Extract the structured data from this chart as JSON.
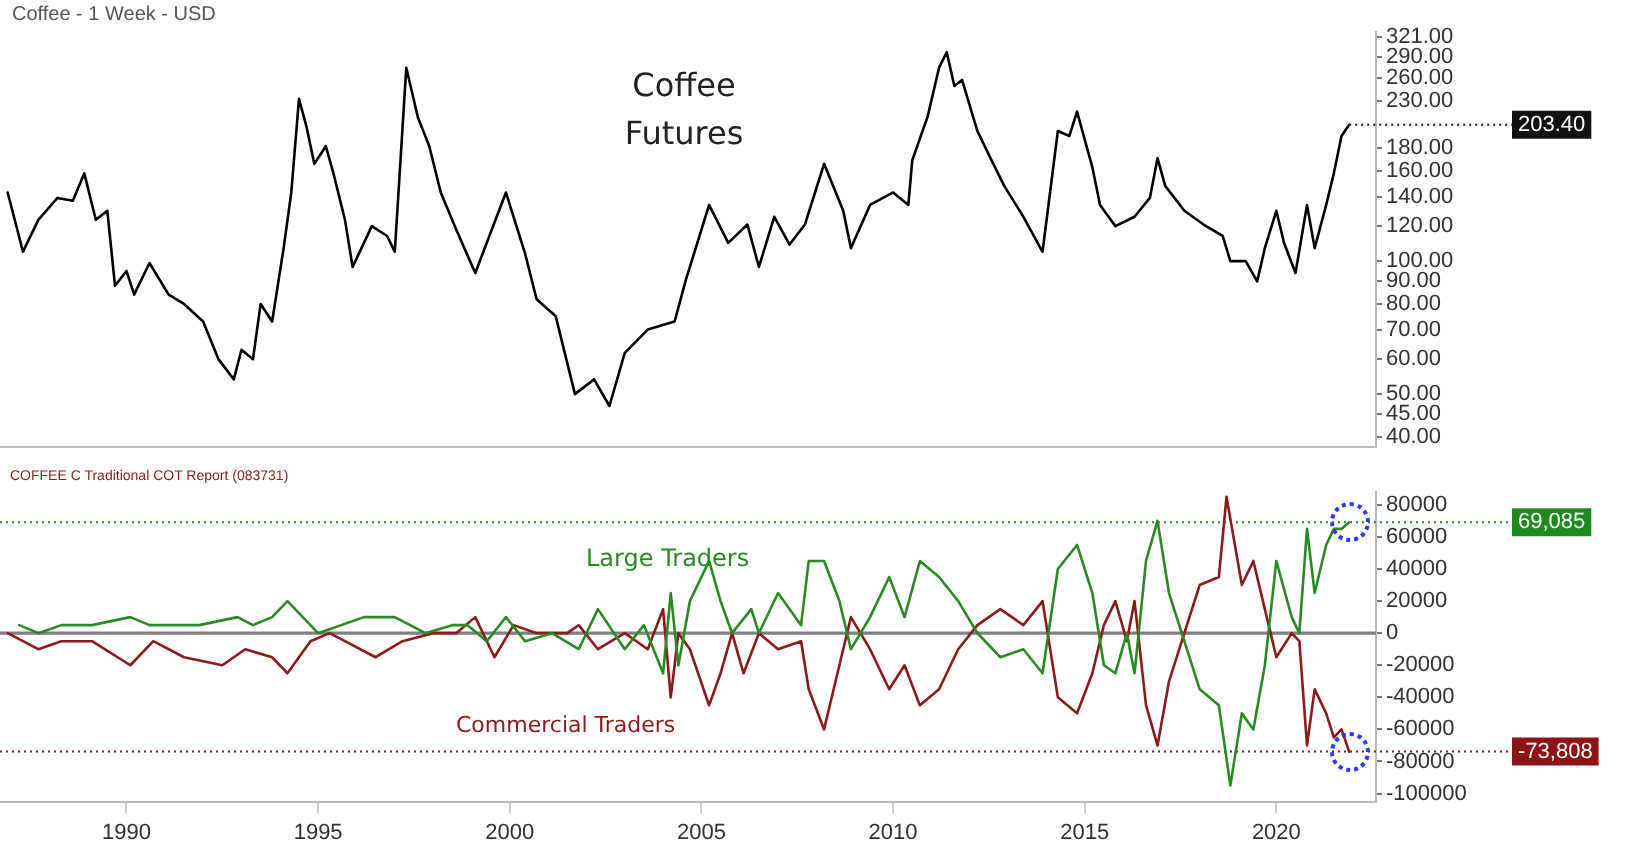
{
  "chart_data": [
    {
      "type": "line",
      "title": "Coffee Futures",
      "subtitle": "Coffee - 1 Week - USD",
      "log": "y",
      "legend": false,
      "grid": false,
      "tick_labels": "y",
      "marker": "none",
      "xlim": [
        1986.7,
        2022.6
      ],
      "xticks": [
        1990,
        1995,
        2000,
        2005,
        2010,
        2015,
        2020
      ],
      "ylim": [
        38,
        330
      ],
      "yticks": [
        {
          "value": 321,
          "label": "321.00"
        },
        {
          "value": 290,
          "label": "290.00"
        },
        {
          "value": 260,
          "label": "260.00"
        },
        {
          "value": 230,
          "label": "230.00"
        },
        {
          "value": 180,
          "label": "180.00"
        },
        {
          "value": 160,
          "label": "160.00"
        },
        {
          "value": 140,
          "label": "140.00"
        },
        {
          "value": 120,
          "label": "120.00"
        },
        {
          "value": 100,
          "label": "100.00"
        },
        {
          "value": 90,
          "label": "90.00"
        },
        {
          "value": 80,
          "label": "80.00"
        },
        {
          "value": 70,
          "label": "70.00"
        },
        {
          "value": 60,
          "label": "60.00"
        },
        {
          "value": 50,
          "label": "50.00"
        },
        {
          "value": 45,
          "label": "45.00"
        },
        {
          "value": 40,
          "label": "40.00"
        }
      ],
      "annotations": [
        {
          "text": "203.40",
          "x": 2021.9,
          "y": 203.4
        }
      ],
      "series": [
        {
          "color": "#000000",
          "x": [
            1986.9,
            1987.3,
            1987.7,
            1988.2,
            1988.6,
            1988.9,
            1989.2,
            1989.5,
            1989.7,
            1990.0,
            1990.2,
            1990.6,
            1991.1,
            1991.5,
            1992.0,
            1992.4,
            1992.8,
            1993.0,
            1993.3,
            1993.5,
            1993.8,
            1994.1,
            1994.3,
            1994.5,
            1994.7,
            1994.9,
            1995.2,
            1995.4,
            1995.7,
            1995.9,
            1996.4,
            1996.8,
            1997.0,
            1997.3,
            1997.6,
            1997.9,
            1998.2,
            1998.6,
            1999.1,
            1999.9,
            2000.4,
            2000.7,
            2001.2,
            2001.7,
            2002.2,
            2002.6,
            2003.0,
            2003.6,
            2004.3,
            2004.6,
            2005.2,
            2005.7,
            2006.2,
            2006.5,
            2006.9,
            2007.3,
            2007.7,
            2008.2,
            2008.7,
            2008.9,
            2009.4,
            2010.0,
            2010.4,
            2010.5,
            2010.9,
            2011.2,
            2011.4,
            2011.6,
            2011.8,
            2012.2,
            2012.5,
            2012.9,
            2013.4,
            2013.9,
            2014.3,
            2014.6,
            2014.8,
            2015.2,
            2015.4,
            2015.8,
            2016.3,
            2016.7,
            2016.9,
            2017.1,
            2017.6,
            2018.1,
            2018.6,
            2018.8,
            2019.2,
            2019.5,
            2019.7,
            2020.0,
            2020.2,
            2020.5,
            2020.8,
            2021.0,
            2021.3,
            2021.5,
            2021.7,
            2021.9
          ],
          "values": [
            143,
            105,
            124,
            139,
            137,
            158,
            124,
            130,
            88,
            95,
            84,
            99,
            84,
            80,
            73,
            60,
            54,
            63,
            60,
            80,
            73,
            107,
            143,
            233,
            201,
            166,
            182,
            158,
            124,
            97,
            120,
            114,
            105,
            274,
            212,
            182,
            143,
            118,
            94,
            143,
            104,
            82,
            75,
            50,
            54,
            47,
            62,
            70,
            73,
            91,
            134,
            110,
            121,
            97,
            126,
            109,
            121,
            166,
            130,
            107,
            134,
            143,
            134,
            169,
            212,
            274,
            297,
            249,
            257,
            197,
            174,
            148,
            126,
            105,
            197,
            192,
            218,
            163,
            134,
            120,
            126,
            139,
            171,
            148,
            130,
            121,
            114,
            100,
            100,
            90,
            107,
            130,
            110,
            94,
            134,
            107,
            134,
            158,
            192,
            203.4
          ]
        }
      ]
    },
    {
      "type": "line",
      "title": "COFFEE C Traditional COT Report (083731)",
      "legend": false,
      "grid": false,
      "marker": "none",
      "xlim": [
        1986.7,
        2022.6
      ],
      "xticks": [
        1990,
        1995,
        2000,
        2005,
        2010,
        2015,
        2020
      ],
      "ylim": [
        -105000,
        88000
      ],
      "yticks": [
        -100000,
        -80000,
        -60000,
        -40000,
        -20000,
        0,
        20000,
        40000,
        60000,
        80000
      ],
      "ref_lines": [
        {
          "axis": "y",
          "value": 0,
          "color": "#808080",
          "line_style": "solid"
        },
        {
          "axis": "y",
          "value": 69085,
          "label": "69,085",
          "color": "#1e8a1e",
          "line_style": "dotted"
        },
        {
          "axis": "y",
          "value": -73808,
          "label": "-73,808",
          "color": "#8b1414",
          "line_style": "dotted"
        }
      ],
      "series": [
        {
          "name": "Large Traders",
          "color": "#2a8a22",
          "x": [
            1987.2,
            1987.7,
            1988.3,
            1989.1,
            1990.1,
            1990.6,
            1991.2,
            1991.9,
            1992.9,
            1993.3,
            1993.8,
            1994.2,
            1994.6,
            1995.0,
            1995.6,
            1996.2,
            1997.0,
            1997.8,
            1998.5,
            1998.9,
            1999.4,
            1999.9,
            2000.4,
            2001.1,
            2001.8,
            2002.3,
            2003.0,
            2003.5,
            2004.0,
            2004.2,
            2004.4,
            2004.7,
            2005.2,
            2005.5,
            2005.8,
            2006.3,
            2006.5,
            2007.0,
            2007.6,
            2007.8,
            2008.2,
            2008.6,
            2008.9,
            2009.4,
            2009.9,
            2010.3,
            2010.7,
            2011.2,
            2011.7,
            2012.2,
            2012.8,
            2013.4,
            2013.9,
            2014.3,
            2014.8,
            2015.2,
            2015.5,
            2015.8,
            2016.1,
            2016.3,
            2016.6,
            2016.9,
            2017.2,
            2017.6,
            2018.0,
            2018.5,
            2018.8,
            2019.1,
            2019.4,
            2019.7,
            2020.0,
            2020.4,
            2020.6,
            2020.8,
            2021.0,
            2021.3,
            2021.5,
            2021.7,
            2021.9
          ],
          "values": [
            5000,
            0,
            5000,
            5000,
            10000,
            5000,
            5000,
            5000,
            10000,
            5000,
            10000,
            20000,
            10000,
            0,
            5000,
            10000,
            10000,
            0,
            5000,
            5000,
            -5000,
            10000,
            -5000,
            0,
            -10000,
            15000,
            -10000,
            5000,
            -25000,
            25000,
            -20000,
            20000,
            45000,
            20000,
            0,
            15000,
            0,
            25000,
            5000,
            45000,
            45000,
            20000,
            -10000,
            10000,
            35000,
            10000,
            45000,
            35000,
            20000,
            0,
            -15000,
            -10000,
            -25000,
            40000,
            55000,
            25000,
            -20000,
            -25000,
            0,
            -25000,
            45000,
            70000,
            25000,
            -5000,
            -35000,
            -45000,
            -95000,
            -50000,
            -60000,
            -20000,
            45000,
            10000,
            0,
            65000,
            25000,
            55000,
            65000,
            65000,
            69085
          ]
        },
        {
          "name": "Commercial Traders",
          "color": "#8b1a1a",
          "x": [
            1986.9,
            1987.7,
            1988.3,
            1989.1,
            1990.1,
            1990.7,
            1991.5,
            1992.5,
            1993.1,
            1993.8,
            1994.2,
            1994.8,
            1995.3,
            1995.7,
            1996.5,
            1997.2,
            1998.0,
            1998.6,
            1999.1,
            1999.6,
            2000.1,
            2000.7,
            2001.5,
            2001.8,
            2002.3,
            2003.0,
            2003.6,
            2004.0,
            2004.2,
            2004.4,
            2004.7,
            2005.2,
            2005.5,
            2005.8,
            2006.1,
            2006.5,
            2007.0,
            2007.6,
            2007.8,
            2008.2,
            2008.6,
            2008.9,
            2009.4,
            2009.9,
            2010.3,
            2010.7,
            2011.2,
            2011.7,
            2012.2,
            2012.8,
            2013.4,
            2013.9,
            2014.3,
            2014.8,
            2015.2,
            2015.5,
            2015.8,
            2016.1,
            2016.3,
            2016.6,
            2016.9,
            2017.2,
            2017.6,
            2018.0,
            2018.5,
            2018.7,
            2019.1,
            2019.4,
            2019.7,
            2020.0,
            2020.4,
            2020.6,
            2020.8,
            2021.0,
            2021.3,
            2021.5,
            2021.7,
            2021.9
          ],
          "values": [
            0,
            -10000,
            -5000,
            -5000,
            -20000,
            -5000,
            -15000,
            -20000,
            -10000,
            -15000,
            -25000,
            -5000,
            0,
            -5000,
            -15000,
            -5000,
            0,
            0,
            10000,
            -15000,
            5000,
            0,
            0,
            5000,
            -10000,
            0,
            -10000,
            15000,
            -40000,
            0,
            -10000,
            -45000,
            -25000,
            0,
            -25000,
            0,
            -10000,
            -5000,
            -35000,
            -60000,
            -20000,
            10000,
            -10000,
            -35000,
            -20000,
            -45000,
            -35000,
            -10000,
            5000,
            15000,
            5000,
            20000,
            -40000,
            -50000,
            -25000,
            5000,
            20000,
            -5000,
            20000,
            -45000,
            -70000,
            -30000,
            0,
            30000,
            35000,
            85000,
            30000,
            45000,
            15000,
            -15000,
            0,
            -5000,
            -70000,
            -35000,
            -50000,
            -65000,
            -60000,
            -73808
          ]
        }
      ]
    }
  ]
}
